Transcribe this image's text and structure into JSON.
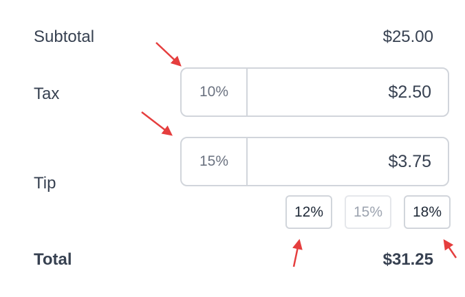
{
  "subtotal": {
    "label": "Subtotal",
    "value": "$25.00"
  },
  "tax": {
    "label": "Tax",
    "percent": "10%",
    "amount": "$2.50"
  },
  "tip": {
    "label": "Tip",
    "percent": "15%",
    "amount": "$3.75",
    "presets": [
      {
        "label": "12%",
        "disabled": false
      },
      {
        "label": "15%",
        "disabled": true
      },
      {
        "label": "18%",
        "disabled": false
      }
    ]
  },
  "total": {
    "label": "Total",
    "value": "$31.25"
  },
  "colors": {
    "annotation_arrow": "#e53e3e",
    "border": "#d1d5db",
    "text": "#374151"
  }
}
